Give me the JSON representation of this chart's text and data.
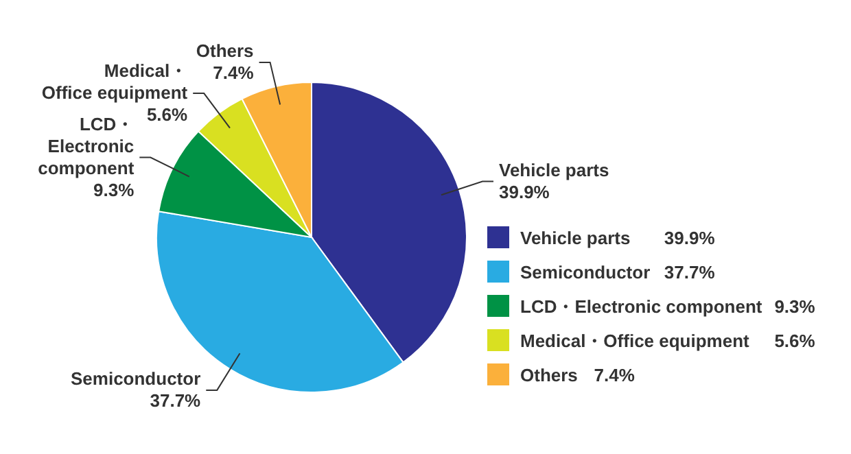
{
  "chart_data": {
    "type": "pie",
    "categories": [
      "Vehicle parts",
      "Semiconductor",
      "LCD・Electronic component",
      "Medical・Office equipment",
      "Others"
    ],
    "values": [
      39.9,
      37.7,
      9.3,
      5.6,
      7.4
    ],
    "colors": [
      "#2e3192",
      "#29abe2",
      "#009245",
      "#d9e021",
      "#fbb03b"
    ],
    "value_labels": [
      "39.9%",
      "37.7%",
      "9.3%",
      "5.6%",
      "7.4%"
    ],
    "legend": "right"
  }
}
